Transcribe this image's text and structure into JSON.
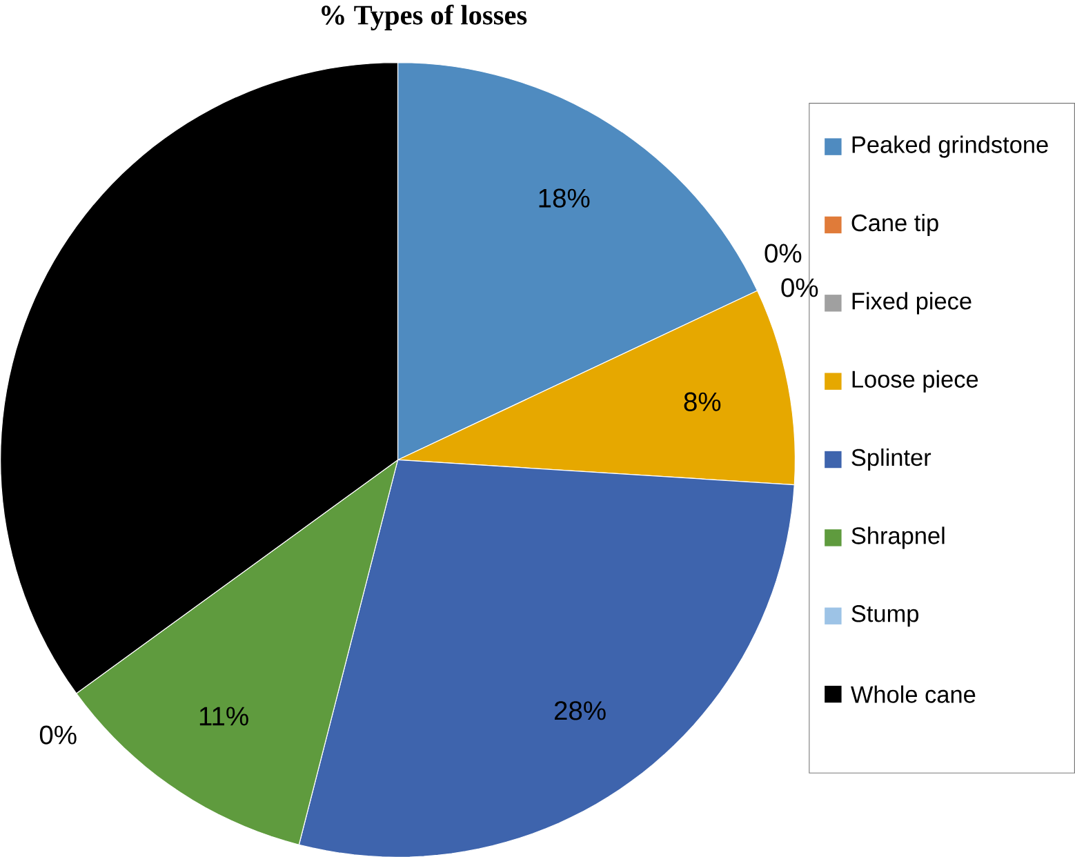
{
  "chart_data": {
    "type": "pie",
    "title": "% Types of losses",
    "categories": [
      "Peaked grindstone",
      "Cane tip",
      "Fixed piece",
      "Loose piece",
      "Splinter",
      "Shrapnel",
      "Stump",
      "Whole cane"
    ],
    "values": [
      18,
      0,
      0,
      8,
      28,
      11,
      0,
      35
    ],
    "value_labels": [
      "18%",
      "0%",
      "0%",
      "8%",
      "28%",
      "11%",
      "0%",
      null
    ],
    "colors": [
      "#4f8bc0",
      "#e07b39",
      "#a0a0a0",
      "#e6a800",
      "#3e64ad",
      "#5f9b3e",
      "#9dc3e6",
      "#000000"
    ],
    "legend": "right"
  }
}
